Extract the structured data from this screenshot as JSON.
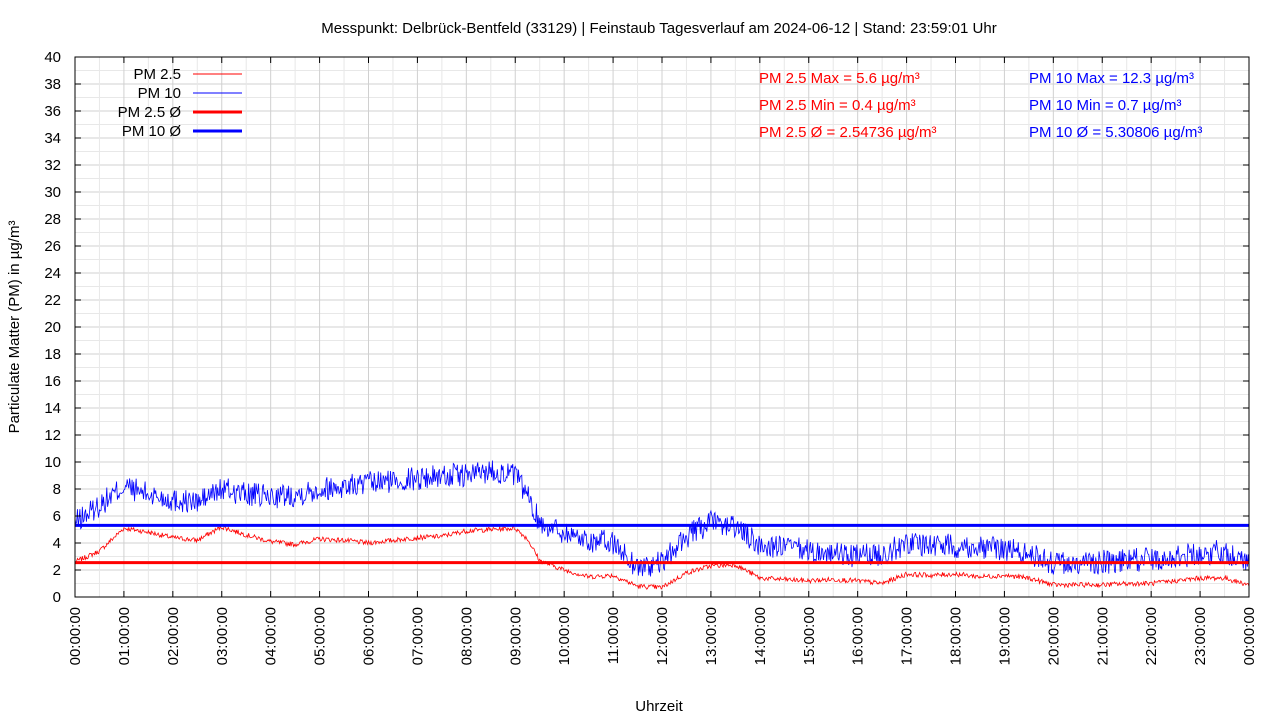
{
  "chart_data": {
    "type": "line",
    "title": "Messpunkt: Delbrück-Bentfeld (33129) | Feinstaub Tagesverlauf am 2024-06-12 | Stand: 23:59:01 Uhr",
    "xlabel": "Uhrzeit",
    "ylabel": "Particulate Matter (PM) in µg/m³",
    "ylim": [
      0,
      40
    ],
    "xlim_hours": [
      0,
      24
    ],
    "grid": true,
    "legend_position": "top-left",
    "y_ticks": [
      "0",
      "2",
      "4",
      "6",
      "8",
      "10",
      "12",
      "14",
      "16",
      "18",
      "20",
      "22",
      "24",
      "26",
      "28",
      "30",
      "32",
      "34",
      "36",
      "38",
      "40"
    ],
    "x_ticks": [
      "00:00:00",
      "01:00:00",
      "02:00:00",
      "03:00:00",
      "04:00:00",
      "05:00:00",
      "06:00:00",
      "07:00:00",
      "08:00:00",
      "09:00:00",
      "10:00:00",
      "11:00:00",
      "12:00:00",
      "13:00:00",
      "14:00:00",
      "15:00:00",
      "16:00:00",
      "17:00:00",
      "18:00:00",
      "19:00:00",
      "20:00:00",
      "21:00:00",
      "22:00:00",
      "23:00:00",
      "00:00:00"
    ],
    "series": [
      {
        "name": "PM 2.5",
        "color": "#ff0000",
        "hours": [
          0,
          0.5,
          1,
          1.5,
          2,
          2.5,
          3,
          3.5,
          4,
          4.5,
          5,
          5.5,
          6,
          6.5,
          7,
          7.5,
          8,
          8.5,
          9,
          9.25,
          9.5,
          10,
          10.5,
          11,
          11.5,
          12,
          12.5,
          13,
          13.5,
          14,
          14.5,
          15,
          15.5,
          16,
          16.5,
          17,
          17.5,
          18,
          18.5,
          19,
          19.5,
          20,
          20.5,
          21,
          21.5,
          22,
          22.5,
          23,
          23.5,
          24
        ],
        "values": [
          2.6,
          3.4,
          5.1,
          4.8,
          4.4,
          4.2,
          5.2,
          4.6,
          4.1,
          3.9,
          4.3,
          4.2,
          4.0,
          4.2,
          4.4,
          4.5,
          4.9,
          5.0,
          5.1,
          4.3,
          2.7,
          2.0,
          1.5,
          1.6,
          0.8,
          0.7,
          1.8,
          2.3,
          2.4,
          1.4,
          1.3,
          1.2,
          1.3,
          1.2,
          1.0,
          1.7,
          1.6,
          1.7,
          1.5,
          1.6,
          1.4,
          0.9,
          0.9,
          0.9,
          1.0,
          1.0,
          1.2,
          1.4,
          1.4,
          0.9
        ]
      },
      {
        "name": "PM 10",
        "color": "#0000ff",
        "hours": [
          0,
          0.5,
          1,
          1.5,
          2,
          2.5,
          3,
          3.5,
          4,
          4.5,
          5,
          5.5,
          6,
          6.5,
          7,
          7.5,
          8,
          8.5,
          9,
          9.25,
          9.5,
          10,
          10.5,
          11,
          11.5,
          12,
          12.5,
          13,
          13.5,
          14,
          14.5,
          15,
          15.5,
          16,
          16.5,
          17,
          17.5,
          18,
          18.5,
          19,
          19.5,
          20,
          20.5,
          21,
          21.5,
          22,
          22.5,
          23,
          23.5,
          24
        ],
        "values": [
          5.5,
          6.8,
          8.2,
          7.6,
          7.2,
          7.0,
          8.0,
          7.6,
          7.4,
          7.6,
          8.0,
          8.2,
          8.4,
          8.6,
          8.8,
          9.0,
          9.0,
          9.4,
          9.0,
          7.5,
          5.5,
          4.8,
          4.2,
          4.0,
          2.2,
          2.5,
          4.5,
          5.5,
          5.2,
          3.8,
          3.7,
          3.4,
          3.2,
          3.0,
          3.2,
          4.0,
          3.9,
          3.8,
          3.7,
          3.6,
          3.2,
          2.5,
          2.4,
          2.6,
          2.7,
          2.8,
          3.0,
          3.2,
          3.4,
          2.6
        ]
      }
    ],
    "averages": [
      {
        "name": "PM 2.5 Ø",
        "color": "#ff0000",
        "value": 2.54736
      },
      {
        "name": "PM 10 Ø",
        "color": "#0000ff",
        "value": 5.30806
      }
    ]
  },
  "legend": {
    "pm25": "PM 2.5",
    "pm10": "PM 10",
    "pm25_avg": "PM 2.5 Ø",
    "pm10_avg": "PM 10 Ø"
  },
  "stats": {
    "pm25_max": "PM 2.5 Max = 5.6 µg/m³",
    "pm25_min": "PM 2.5 Min = 0.4 µg/m³",
    "pm25_avg": "PM 2.5 Ø = 2.54736 µg/m³",
    "pm10_max": "PM 10 Max = 12.3 µg/m³",
    "pm10_min": "PM 10 Min = 0.7 µg/m³",
    "pm10_avg": "PM 10 Ø = 5.30806 µg/m³"
  }
}
